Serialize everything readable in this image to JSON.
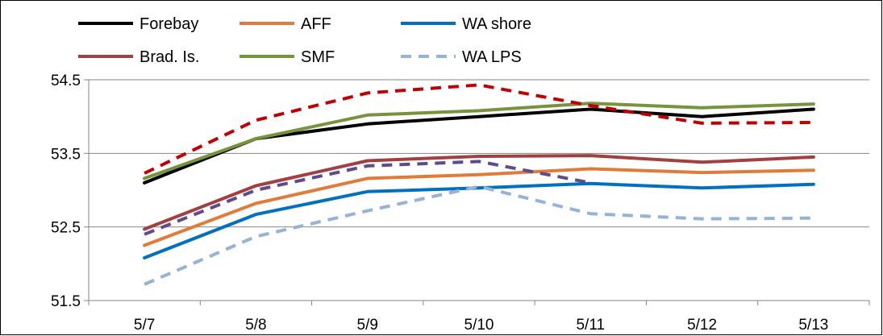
{
  "chart_data": {
    "type": "line",
    "categories": [
      "5/7",
      "5/8",
      "5/9",
      "5/10",
      "5/11",
      "5/12",
      "5/13"
    ],
    "ylim": [
      51.5,
      54.5
    ],
    "yticks": [
      "51.5",
      "52.5",
      "53.5",
      "54.5"
    ],
    "grid": "horizontal",
    "legend_position": "top",
    "series": [
      {
        "name": "Forebay",
        "color": "#000000",
        "dash": false,
        "legend": true,
        "values": [
          53.1,
          53.7,
          53.9,
          54.0,
          54.1,
          54.0,
          54.1
        ]
      },
      {
        "name": "AFF",
        "color": "#E07B39",
        "dash": false,
        "legend": true,
        "values": [
          52.25,
          52.82,
          53.16,
          53.21,
          53.29,
          53.24,
          53.27
        ]
      },
      {
        "name": "WA shore",
        "color": "#0070C0",
        "dash": false,
        "legend": true,
        "values": [
          52.08,
          52.67,
          52.98,
          53.03,
          53.09,
          53.03,
          53.08
        ]
      },
      {
        "name": "Brad. Is.",
        "color": "#A04040",
        "dash": false,
        "legend": true,
        "values": [
          52.47,
          53.06,
          53.4,
          53.46,
          53.47,
          53.38,
          53.45
        ]
      },
      {
        "name": "SMF",
        "color": "#77933C",
        "dash": false,
        "legend": true,
        "values": [
          53.16,
          53.7,
          54.02,
          54.08,
          54.18,
          54.12,
          54.17
        ]
      },
      {
        "name": "WA LPS",
        "color": "#95B3D7",
        "dash": true,
        "legend": true,
        "values": [
          51.72,
          52.37,
          52.72,
          53.05,
          52.68,
          52.61,
          52.62
        ]
      },
      {
        "name": "",
        "color": "#C00000",
        "dash": true,
        "legend": false,
        "values": [
          53.23,
          53.95,
          54.32,
          54.43,
          54.15,
          53.91,
          53.92
        ]
      },
      {
        "name": "",
        "color": "#5F4B8B",
        "dash": true,
        "legend": false,
        "values": [
          52.4,
          53.0,
          53.33,
          53.39,
          53.1,
          null,
          null
        ]
      }
    ]
  }
}
